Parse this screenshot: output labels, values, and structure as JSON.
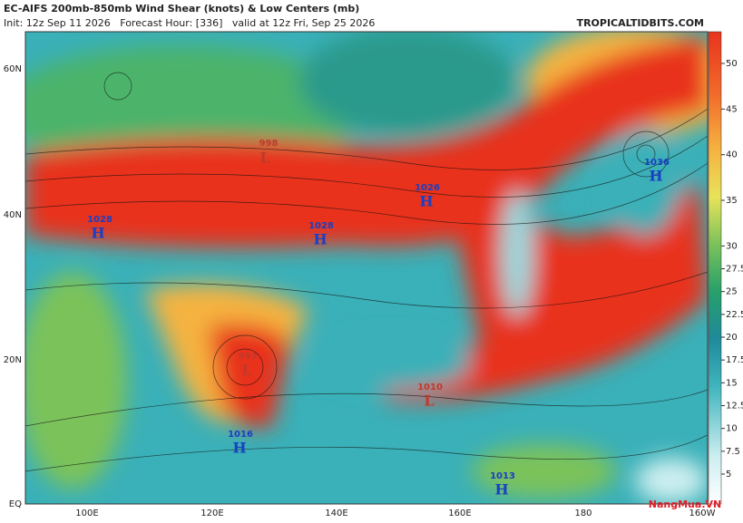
{
  "header": {
    "title": "EC-AIFS 200mb-850mb Wind Shear (knots) & Low Centers (mb)",
    "subtitle": "Init: 12z Sep 11 2026   Forecast Hour: [336]   valid at 12z Fri, Sep 25 2026",
    "site": "TROPICALTIDBITS.COM"
  },
  "lat_labels": [
    "60N",
    "40N",
    "20N",
    "EQ"
  ],
  "lon_labels": [
    "100E",
    "120E",
    "140E",
    "160E",
    "180",
    "160W"
  ],
  "colorbar": {
    "ticks": [
      5,
      7.5,
      10,
      12.5,
      15,
      17.5,
      20,
      22.5,
      25,
      27.5,
      30,
      35,
      40,
      45,
      50
    ]
  },
  "centers": [
    {
      "type": "L",
      "value": "998"
    },
    {
      "type": "H",
      "value": "1028"
    },
    {
      "type": "H",
      "value": "1028"
    },
    {
      "type": "H",
      "value": "1026"
    },
    {
      "type": "H",
      "value": "1036"
    },
    {
      "type": "L",
      "value": "993"
    },
    {
      "type": "H",
      "value": "1016"
    },
    {
      "type": "L",
      "value": "1010"
    },
    {
      "type": "H",
      "value": "1013"
    }
  ],
  "watermark": "NangMua.VN"
}
